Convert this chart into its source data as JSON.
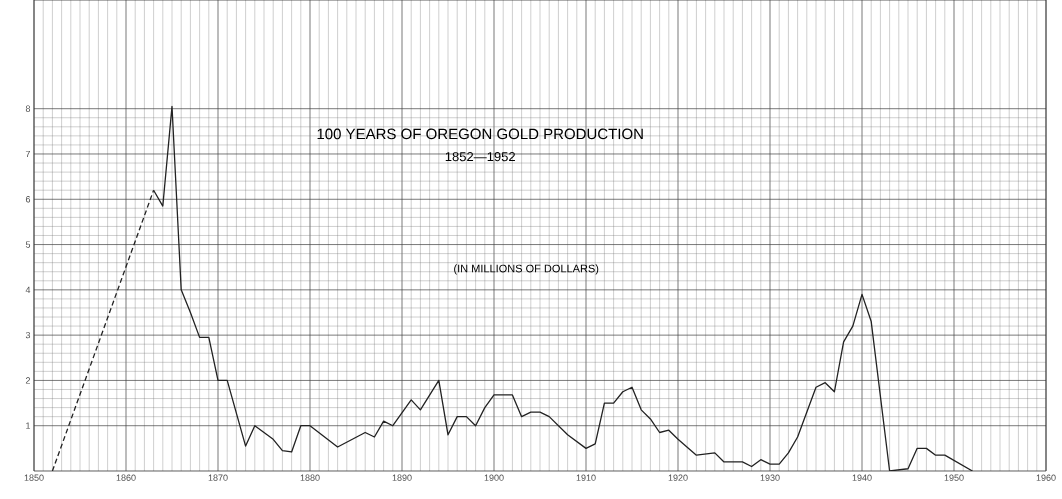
{
  "chart_data": {
    "type": "line",
    "title": "100 YEARS OF OREGON GOLD PRODUCTION",
    "subtitle": "1852—1952",
    "annotations": [
      "(IN MILLIONS OF DOLLARS)"
    ],
    "xlim": [
      1850,
      1960
    ],
    "xticks": [
      1850,
      1860,
      1870,
      1880,
      1890,
      1900,
      1910,
      1920,
      1930,
      1940,
      1950,
      1960
    ],
    "ylim": [
      0,
      10.4
    ],
    "yticks": [
      1,
      2,
      3,
      4,
      5,
      6,
      7,
      8
    ],
    "grid": true,
    "series": [
      {
        "color": "#222222",
        "line_style": "dashed",
        "x": [
          1852,
          1863
        ],
        "values": [
          0,
          6.2
        ]
      },
      {
        "color": "#222222",
        "line_style": "solid",
        "x": [
          1863,
          1864,
          1865,
          1866,
          1867,
          1868,
          1869,
          1870,
          1871,
          1873,
          1874,
          1876,
          1877,
          1878,
          1879,
          1880,
          1883,
          1886,
          1887,
          1888,
          1889,
          1891,
          1892,
          1894,
          1895,
          1896,
          1897,
          1898,
          1899,
          1900,
          1902,
          1903,
          1904,
          1905,
          1906,
          1908,
          1910,
          1911,
          1912,
          1913,
          1914,
          1915,
          1916,
          1917,
          1918,
          1919,
          1920,
          1922,
          1924,
          1925,
          1927,
          1928,
          1929,
          1930,
          1931,
          1932,
          1933,
          1935,
          1936,
          1937,
          1938,
          1939,
          1940,
          1941,
          1943,
          1945,
          1946,
          1947,
          1948,
          1949,
          1952
        ],
        "values": [
          6.2,
          5.85,
          8.05,
          4.0,
          3.5,
          2.95,
          2.95,
          2.0,
          2.0,
          0.55,
          1.0,
          0.7,
          0.45,
          0.42,
          1.0,
          1.0,
          0.53,
          0.85,
          0.75,
          1.1,
          1.0,
          1.57,
          1.35,
          2.0,
          0.8,
          1.2,
          1.2,
          1.0,
          1.4,
          1.68,
          1.68,
          1.2,
          1.3,
          1.3,
          1.2,
          0.8,
          0.5,
          0.6,
          1.5,
          1.5,
          1.75,
          1.85,
          1.35,
          1.15,
          0.85,
          0.9,
          0.7,
          0.35,
          0.4,
          0.2,
          0.2,
          0.1,
          0.25,
          0.15,
          0.15,
          0.4,
          0.75,
          1.85,
          1.95,
          1.75,
          2.85,
          3.2,
          3.9,
          3.3,
          0,
          0.05,
          0.5,
          0.5,
          0.35,
          0.35,
          0
        ]
      }
    ]
  }
}
